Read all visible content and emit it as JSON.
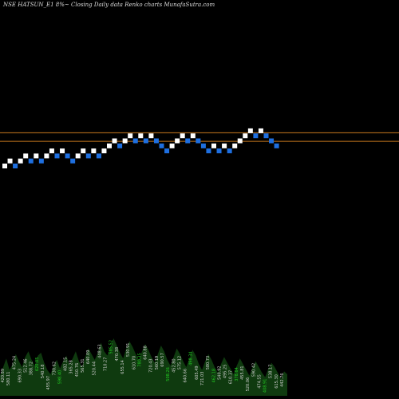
{
  "header": {
    "symbol": "NSE HATSUN_E1 8%~",
    "chart_label": "Closing Daily data",
    "type_label": "Renko",
    "site_label": "charts MunafaSutra.com"
  },
  "colors": {
    "background": "#000000",
    "up_brick": "#ffffff",
    "down_brick": "#1e6fe0",
    "reference_line": "#c8781e",
    "volume_fill": "#0f3a0f",
    "volume_label": "#cfcfcf",
    "volume_label_highlight": "#22cc22"
  },
  "chart_data": {
    "type": "renko",
    "bricks": [
      {
        "level": 0,
        "dir": "up"
      },
      {
        "level": 1,
        "dir": "up"
      },
      {
        "level": 0,
        "dir": "down"
      },
      {
        "level": 1,
        "dir": "up"
      },
      {
        "level": 2,
        "dir": "up"
      },
      {
        "level": 1,
        "dir": "down"
      },
      {
        "level": 2,
        "dir": "up"
      },
      {
        "level": 1,
        "dir": "down"
      },
      {
        "level": 2,
        "dir": "up"
      },
      {
        "level": 3,
        "dir": "up"
      },
      {
        "level": 2,
        "dir": "down"
      },
      {
        "level": 3,
        "dir": "up"
      },
      {
        "level": 2,
        "dir": "down"
      },
      {
        "level": 1,
        "dir": "down"
      },
      {
        "level": 2,
        "dir": "up"
      },
      {
        "level": 3,
        "dir": "up"
      },
      {
        "level": 2,
        "dir": "down"
      },
      {
        "level": 3,
        "dir": "up"
      },
      {
        "level": 2,
        "dir": "down"
      },
      {
        "level": 3,
        "dir": "up"
      },
      {
        "level": 4,
        "dir": "up"
      },
      {
        "level": 5,
        "dir": "up"
      },
      {
        "level": 4,
        "dir": "down"
      },
      {
        "level": 5,
        "dir": "up"
      },
      {
        "level": 6,
        "dir": "up"
      },
      {
        "level": 5,
        "dir": "down"
      },
      {
        "level": 6,
        "dir": "up"
      },
      {
        "level": 5,
        "dir": "down"
      },
      {
        "level": 6,
        "dir": "up"
      },
      {
        "level": 5,
        "dir": "down"
      },
      {
        "level": 4,
        "dir": "down"
      },
      {
        "level": 3,
        "dir": "down"
      },
      {
        "level": 4,
        "dir": "up"
      },
      {
        "level": 5,
        "dir": "up"
      },
      {
        "level": 6,
        "dir": "up"
      },
      {
        "level": 5,
        "dir": "down"
      },
      {
        "level": 6,
        "dir": "up"
      },
      {
        "level": 5,
        "dir": "down"
      },
      {
        "level": 4,
        "dir": "down"
      },
      {
        "level": 3,
        "dir": "down"
      },
      {
        "level": 4,
        "dir": "up"
      },
      {
        "level": 3,
        "dir": "down"
      },
      {
        "level": 4,
        "dir": "up"
      },
      {
        "level": 3,
        "dir": "down"
      },
      {
        "level": 4,
        "dir": "up"
      },
      {
        "level": 5,
        "dir": "up"
      },
      {
        "level": 6,
        "dir": "up"
      },
      {
        "level": 7,
        "dir": "up"
      },
      {
        "level": 6,
        "dir": "down"
      },
      {
        "level": 7,
        "dir": "up"
      },
      {
        "level": 6,
        "dir": "down"
      },
      {
        "level": 5,
        "dir": "down"
      },
      {
        "level": 4,
        "dir": "down"
      }
    ],
    "reference_lines": [
      6.6,
      4.9
    ],
    "volume_profile": [
      28,
      40,
      52,
      36,
      44,
      58,
      48,
      40,
      54,
      62,
      50,
      42,
      56,
      60,
      46,
      36,
      30,
      42,
      50,
      38,
      48,
      56,
      44,
      52,
      62,
      48,
      40,
      54,
      66,
      58,
      50,
      60,
      74,
      62,
      56,
      68,
      80,
      70,
      60,
      52,
      66,
      76,
      68,
      58,
      50,
      62,
      72,
      64,
      54,
      46,
      58,
      70,
      62,
      50,
      42,
      54,
      66,
      58,
      48,
      40,
      52,
      64,
      56,
      44,
      36,
      48,
      58,
      50,
      40,
      32,
      44,
      54,
      46,
      38,
      30,
      42,
      52,
      44,
      36,
      28,
      40,
      48,
      40,
      32,
      26,
      38,
      46,
      40,
      32,
      24,
      34,
      30
    ],
    "volume_labels": [
      {
        "text": "420.89",
        "h": 0
      },
      {
        "text": "580.11",
        "h": 0
      },
      {
        "text": "475.24",
        "h": 0
      },
      {
        "text": "690.33",
        "h": 0
      },
      {
        "text": "512.46",
        "h": 0
      },
      {
        "text": "388.72",
        "h": 0
      },
      {
        "text": "620.05",
        "h": 1
      },
      {
        "text": "540.18",
        "h": 0
      },
      {
        "text": "455.97",
        "h": 0
      },
      {
        "text": "730.62",
        "h": 0
      },
      {
        "text": "598.40",
        "h": 1
      },
      {
        "text": "482.15",
        "h": 0
      },
      {
        "text": "365.28",
        "h": 0
      },
      {
        "text": "410.76",
        "h": 0
      },
      {
        "text": "565.31",
        "h": 0
      },
      {
        "text": "640.09",
        "h": 0
      },
      {
        "text": "520.44",
        "h": 0
      },
      {
        "text": "448.63",
        "h": 0
      },
      {
        "text": "710.27",
        "h": 0
      },
      {
        "text": "585.52",
        "h": 1
      },
      {
        "text": "470.38",
        "h": 0
      },
      {
        "text": "655.14",
        "h": 0
      },
      {
        "text": "530.91",
        "h": 0
      },
      {
        "text": "610.70",
        "h": 0
      },
      {
        "text": "780.35",
        "h": 1
      },
      {
        "text": "640.88",
        "h": 0
      },
      {
        "text": "720.43",
        "h": 0
      },
      {
        "text": "560.19",
        "h": 0
      },
      {
        "text": "690.57",
        "h": 0
      },
      {
        "text": "508.26",
        "h": 1
      },
      {
        "text": "452.80",
        "h": 0
      },
      {
        "text": "575.12",
        "h": 0
      },
      {
        "text": "640.66",
        "h": 0
      },
      {
        "text": "498.34",
        "h": 1
      },
      {
        "text": "605.49",
        "h": 0
      },
      {
        "text": "721.03",
        "h": 0
      },
      {
        "text": "580.73",
        "h": 0
      },
      {
        "text": "462.18",
        "h": 1
      },
      {
        "text": "540.92",
        "h": 0
      },
      {
        "text": "495.25",
        "h": 0
      },
      {
        "text": "610.37",
        "h": 0
      },
      {
        "text": "378.64",
        "h": 1
      },
      {
        "text": "455.81",
        "h": 0
      },
      {
        "text": "520.06",
        "h": 0
      },
      {
        "text": "590.42",
        "h": 0
      },
      {
        "text": "474.55",
        "h": 0
      },
      {
        "text": "408.91",
        "h": 1
      },
      {
        "text": "538.17",
        "h": 0
      },
      {
        "text": "615.30",
        "h": 0
      },
      {
        "text": "442.76",
        "h": 0
      }
    ]
  }
}
